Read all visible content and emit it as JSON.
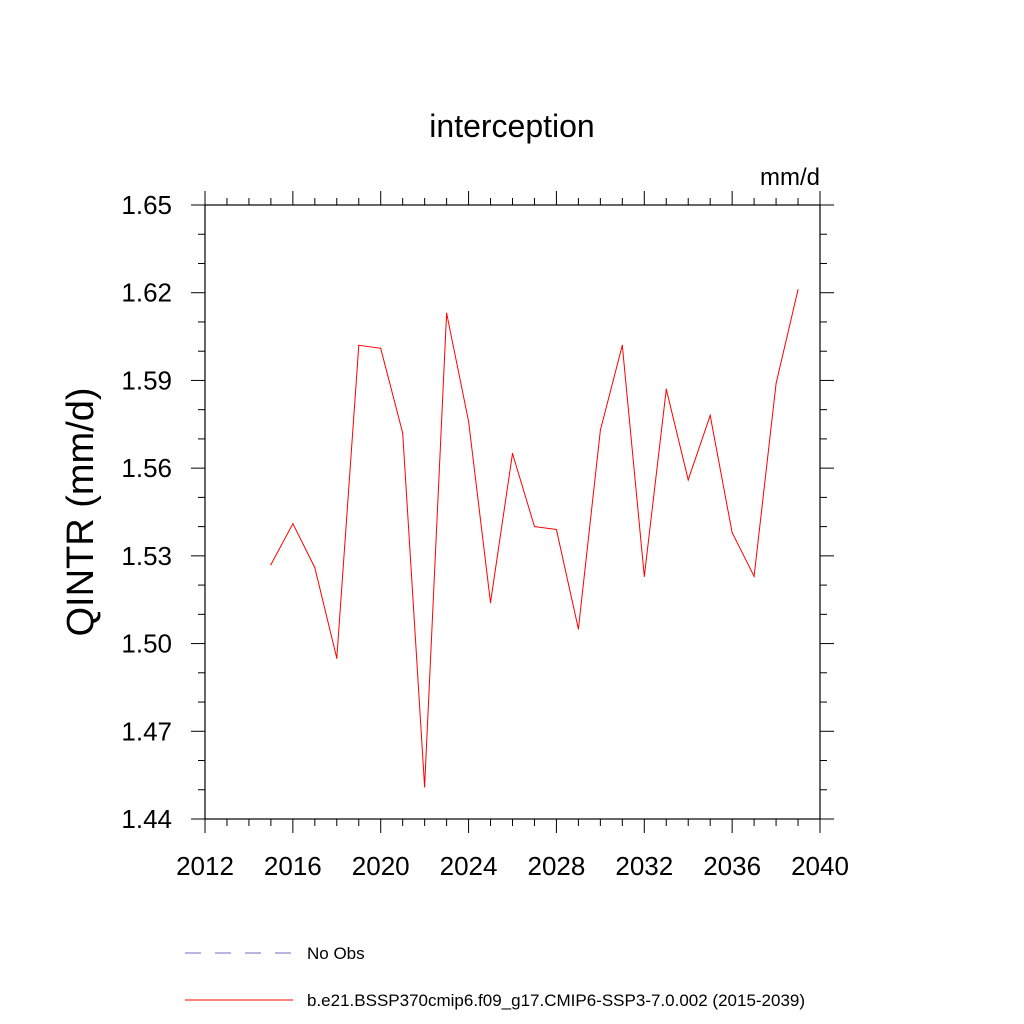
{
  "chart_data": {
    "type": "line",
    "title": "interception",
    "ylabel": "QINTR  (mm/d)",
    "units": "mm/d",
    "xlim": [
      2012,
      2040
    ],
    "ylim": [
      1.44,
      1.65
    ],
    "xticks": [
      2012,
      2016,
      2020,
      2024,
      2028,
      2032,
      2036,
      2040
    ],
    "yticks": [
      "1.44",
      "1.47",
      "1.50",
      "1.53",
      "1.56",
      "1.59",
      "1.62",
      "1.65"
    ],
    "x": [
      2015,
      2016,
      2017,
      2018,
      2019,
      2020,
      2021,
      2022,
      2023,
      2024,
      2025,
      2026,
      2027,
      2028,
      2029,
      2030,
      2031,
      2032,
      2033,
      2034,
      2035,
      2036,
      2037,
      2038,
      2039
    ],
    "series": [
      {
        "name": "b.e21.BSSP370cmip6.f09_g17.CMIP6-SSP3-7.0.002 (2015-2039)",
        "color": "#ff0000",
        "style": "solid",
        "values": [
          1.527,
          1.541,
          1.526,
          1.495,
          1.602,
          1.601,
          1.572,
          1.451,
          1.613,
          1.576,
          1.514,
          1.565,
          1.54,
          1.539,
          1.505,
          1.573,
          1.602,
          1.523,
          1.587,
          1.556,
          1.578,
          1.538,
          1.523,
          1.589,
          1.621
        ]
      }
    ],
    "legend": [
      {
        "label": "No Obs",
        "color": "#7b68c8",
        "style": "dashed"
      },
      {
        "label": "b.e21.BSSP370cmip6.f09_g17.CMIP6-SSP3-7.0.002 (2015-2039)",
        "color": "#ff0000",
        "style": "solid"
      }
    ],
    "legend_position": "bottom",
    "grid": false
  }
}
